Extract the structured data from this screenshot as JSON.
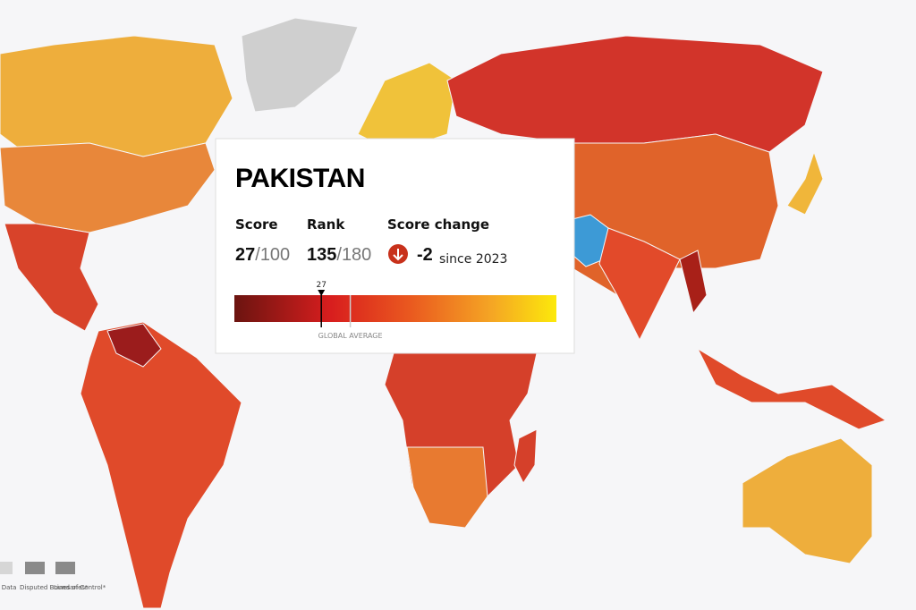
{
  "tooltip": {
    "country": "PAKISTAN",
    "separator": "/",
    "score": {
      "label": "Score",
      "value": 27,
      "max": 100
    },
    "rank": {
      "label": "Rank",
      "value": 135,
      "total": 180
    },
    "score_change": {
      "label": "Score change",
      "value": -2,
      "since": "since 2023"
    },
    "scale": {
      "xlim": [
        0,
        100
      ],
      "marker": 27,
      "global_average": 36,
      "global_average_label": "GLOBAL AVERAGE"
    }
  },
  "legend": {
    "items": [
      "No Data",
      "Disputed Boundaries*",
      "Lines of Control*"
    ]
  }
}
